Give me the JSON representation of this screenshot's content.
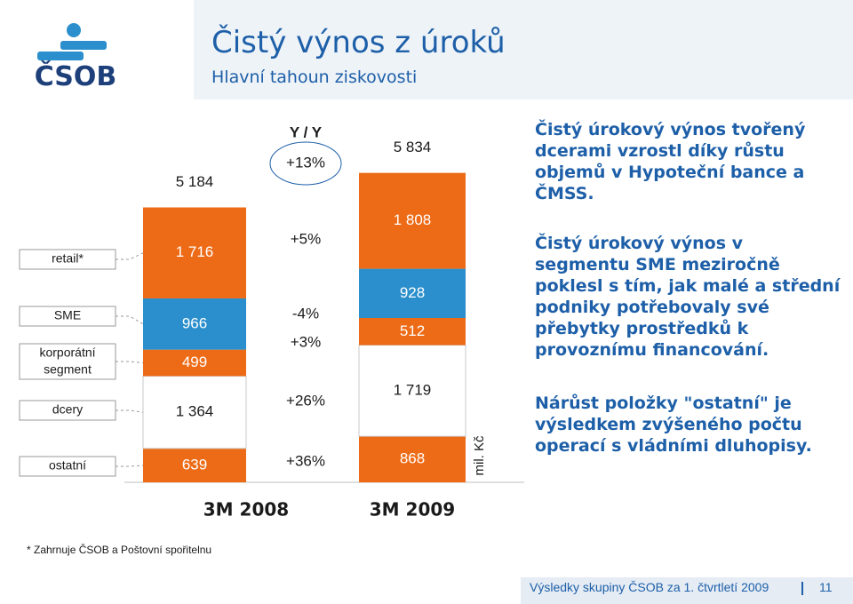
{
  "header": {
    "logo_text": "ČSOB",
    "title": "Čistý výnos z úroků",
    "subtitle": "Hlavní tahoun ziskovosti"
  },
  "colors": {
    "retail": "#ed6b16",
    "sme": "#2a8fcc",
    "corporate": "#ed6b16",
    "subsidiaries": "#ffffff",
    "other": "#ed6b16",
    "brand": "#1d5fa8"
  },
  "chart_data": {
    "type": "bar",
    "stacked": true,
    "categories": [
      "3M 2008",
      "3M 2009"
    ],
    "series": [
      {
        "name": "ostatní",
        "values": [
          639,
          868
        ]
      },
      {
        "name": "dcery",
        "values": [
          1364,
          1719
        ]
      },
      {
        "name": "korporátní segment",
        "values": [
          499,
          512
        ]
      },
      {
        "name": "SME",
        "values": [
          966,
          928
        ]
      },
      {
        "name": "retail*",
        "values": [
          1716,
          1808
        ]
      }
    ],
    "totals": [
      5184,
      5834
    ],
    "value_labels": {
      "3M 2008": {
        "ostatní": "639",
        "dcery": "1 364",
        "korporátní segment": "499",
        "SME": "966",
        "retail*": "1 716",
        "total": "5 184"
      },
      "3M 2009": {
        "ostatní": "868",
        "dcery": "1 719",
        "korporátní segment": "512",
        "SME": "928",
        "retail*": "1 808",
        "total": "5 834"
      }
    },
    "yoy": {
      "header": "Y / Y",
      "total": "+13%",
      "retail": "+5%",
      "sme": "-4%",
      "corporate": "+3%",
      "subsidiaries": "+26%",
      "other": "+36%"
    },
    "ylabel": "mil. Kč",
    "ylim": [
      0,
      6200
    ],
    "legend": [
      "retail*",
      "SME",
      "korporátní segment",
      "dcery",
      "ostatní"
    ]
  },
  "notes": [
    "Čistý úrokový výnos tvořený dcerami vzrostl díky růstu objemů v Hypoteční bance a ČMSS.",
    "Čistý úrokový výnos v segmentu SME meziročně poklesl s tím, jak malé a střední podniky potřebovaly své přebytky prostředků k provoznímu financování.",
    "Nárůst položky \"ostatní\" je výsledkem zvýšeného počtu operací s vládními dluhopisy."
  ],
  "footnote": "* Zahrnuje ČSOB a Poštovní spořitelnu",
  "footer": {
    "text": "Výsledky skupiny ČSOB za 1. čtvrtletí 2009",
    "page": "11"
  }
}
